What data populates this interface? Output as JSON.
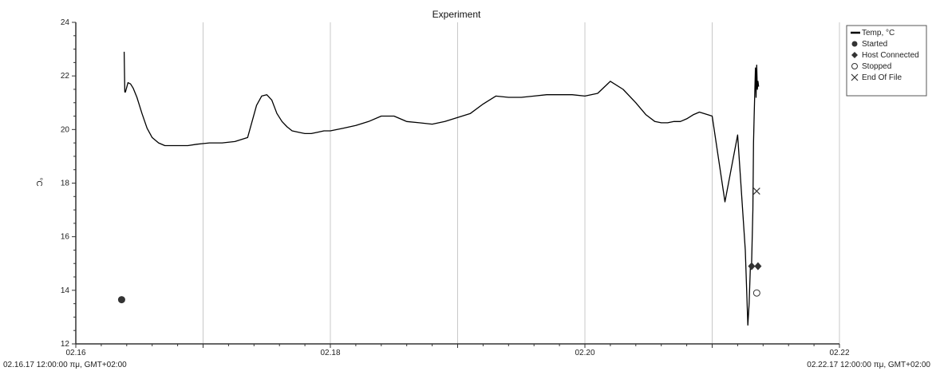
{
  "chart_data": {
    "type": "line",
    "title": "Experiment",
    "ylabel": "°C",
    "xlabel": "",
    "x_axis_start_label": "02.16.17 12:00:00 πμ, GMT+02:00",
    "x_axis_end_label": "02.22.17 12:00:00 πμ, GMT+02:00",
    "ylim": [
      12,
      24
    ],
    "xlim": [
      16,
      22
    ],
    "x_ticks": [
      {
        "value": 16,
        "label": "02.16"
      },
      {
        "value": 18,
        "label": "02.18"
      },
      {
        "value": 20,
        "label": "02.20"
      },
      {
        "value": 22,
        "label": "02.22"
      }
    ],
    "x_gridlines": [
      17,
      18,
      19,
      20,
      21,
      22
    ],
    "y_ticks": [
      12,
      14,
      16,
      18,
      20,
      22,
      24
    ],
    "grid": "vertical",
    "legend_position": "top-right",
    "series": [
      {
        "name": "Temp, °C",
        "color": "#000000",
        "x": [
          16.38,
          16.385,
          16.39,
          16.41,
          16.43,
          16.45,
          16.48,
          16.52,
          16.56,
          16.6,
          16.65,
          16.7,
          16.76,
          16.82,
          16.88,
          16.95,
          17.05,
          17.15,
          17.25,
          17.35,
          17.42,
          17.46,
          17.5,
          17.54,
          17.58,
          17.62,
          17.66,
          17.7,
          17.75,
          17.8,
          17.85,
          17.9,
          17.95,
          18.0,
          18.1,
          18.2,
          18.3,
          18.4,
          18.5,
          18.6,
          18.7,
          18.8,
          18.9,
          19.0,
          19.1,
          19.2,
          19.3,
          19.4,
          19.5,
          19.6,
          19.7,
          19.8,
          19.9,
          20.0,
          20.1,
          20.2,
          20.3,
          20.4,
          20.48,
          20.55,
          20.6,
          20.65,
          20.7,
          20.75,
          20.8,
          20.85,
          20.9,
          21.0,
          21.1,
          21.2,
          21.26,
          21.28,
          21.29,
          21.3,
          21.31,
          21.32,
          21.325,
          21.33,
          21.335,
          21.34,
          21.345,
          21.35,
          21.355,
          21.36,
          21.365
        ],
        "values": [
          22.9,
          21.4,
          21.4,
          21.75,
          21.7,
          21.55,
          21.2,
          20.6,
          20.05,
          19.7,
          19.5,
          19.4,
          19.4,
          19.4,
          19.4,
          19.45,
          19.5,
          19.5,
          19.55,
          19.7,
          20.9,
          21.25,
          21.3,
          21.1,
          20.6,
          20.3,
          20.1,
          19.95,
          19.9,
          19.85,
          19.85,
          19.9,
          19.95,
          19.95,
          20.05,
          20.15,
          20.3,
          20.5,
          20.5,
          20.3,
          20.25,
          20.2,
          20.3,
          20.45,
          20.6,
          20.95,
          21.25,
          21.2,
          21.2,
          21.25,
          21.3,
          21.3,
          21.3,
          21.25,
          21.35,
          21.8,
          21.5,
          21.0,
          20.55,
          20.3,
          20.25,
          20.25,
          20.3,
          20.3,
          20.4,
          20.55,
          20.65,
          20.5,
          17.3,
          19.8,
          15.5,
          12.7,
          13.5,
          14.9,
          15.0,
          17.0,
          19.5,
          20.5,
          21.4,
          22.3,
          21.2,
          22.4,
          21.5,
          21.8,
          21.6
        ]
      }
    ],
    "markers": [
      {
        "name": "Started",
        "symbol": "circle-filled",
        "points": [
          {
            "x": 16.36,
            "y": 13.65
          }
        ]
      },
      {
        "name": "Host Connected",
        "symbol": "diamond-filled",
        "points": [
          {
            "x": 21.31,
            "y": 14.9
          },
          {
            "x": 21.36,
            "y": 14.9
          }
        ]
      },
      {
        "name": "Stopped",
        "symbol": "circle-open",
        "points": [
          {
            "x": 21.35,
            "y": 13.9
          }
        ]
      },
      {
        "name": "End Of File",
        "symbol": "x",
        "points": [
          {
            "x": 21.35,
            "y": 17.7
          }
        ]
      }
    ]
  }
}
